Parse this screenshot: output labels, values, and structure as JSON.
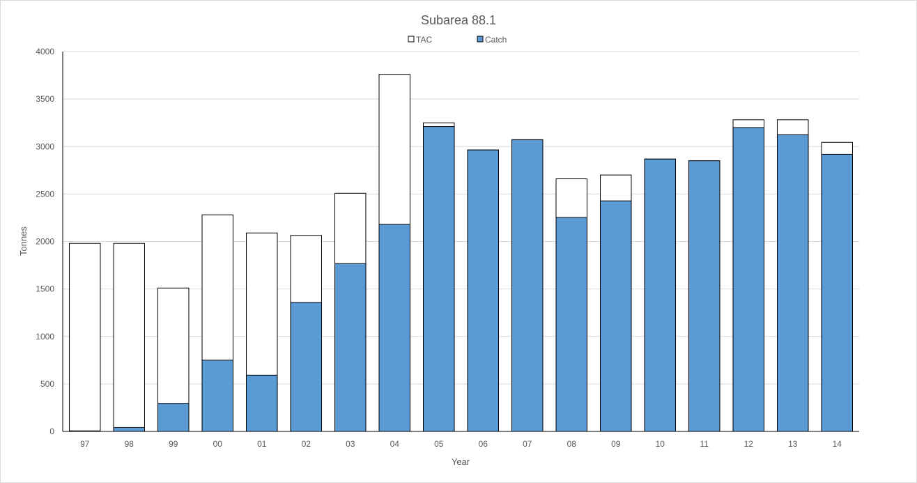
{
  "chart_data": {
    "type": "bar",
    "title": "Subarea 88.1",
    "xlabel": "Year",
    "ylabel": "Tonnes",
    "ylim": [
      0,
      4000
    ],
    "yticks": [
      0,
      500,
      1000,
      1500,
      2000,
      2500,
      3000,
      3500,
      4000
    ],
    "grid": true,
    "legend_position": "top",
    "overlap": true,
    "categories": [
      "97",
      "98",
      "99",
      "00",
      "01",
      "02",
      "03",
      "04",
      "05",
      "06",
      "07",
      "08",
      "09",
      "10",
      "11",
      "12",
      "13",
      "14"
    ],
    "series": [
      {
        "name": "TAC",
        "color": "#ffffff",
        "stroke": "#000000",
        "values": [
          1980,
          1980,
          1510,
          2281,
          2090,
          2064,
          2508,
          3760,
          3250,
          2964,
          3072,
          2660,
          2700,
          2868,
          2850,
          3282,
          3282,
          3044
        ]
      },
      {
        "name": "Catch",
        "color": "#5b9bd5",
        "stroke": "#000000",
        "values": [
          6,
          41,
          296,
          751,
          592,
          1358,
          1767,
          2181,
          3210,
          2964,
          3072,
          2253,
          2428,
          2868,
          2850,
          3200,
          3125,
          2918
        ]
      }
    ]
  }
}
